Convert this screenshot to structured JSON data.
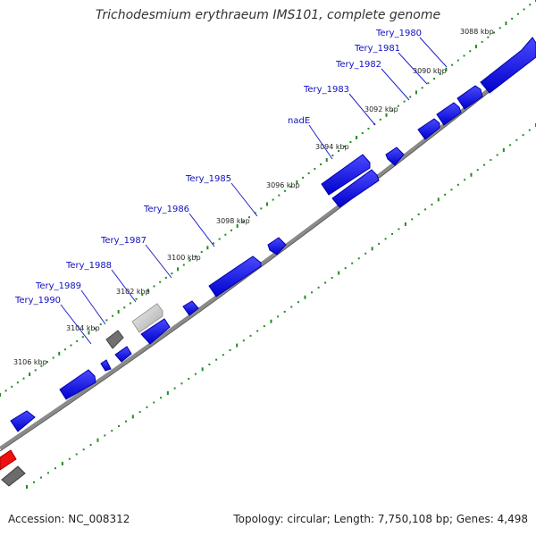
{
  "title": "Trichodesmium erythraeum IMS101, complete genome",
  "footer": {
    "accession": "Accession: NC_008312",
    "topology": "Topology: circular; Length: 7,750,108 bp; Genes: 4,498"
  },
  "colors": {
    "gene": "#1a1aee",
    "gene_label": "#1010c0",
    "pseudo_light": "#c8c8c8",
    "pseudo_dark": "#707070",
    "rna": "#ee1111",
    "backbone": "#808080",
    "tick": "#228b22"
  },
  "scale_labels": [
    {
      "kbp": 3088,
      "label": "3088 kbp"
    },
    {
      "kbp": 3090,
      "label": "3090 kbp"
    },
    {
      "kbp": 3092,
      "label": "3092 kbp"
    },
    {
      "kbp": 3094,
      "label": "3094 kbp"
    },
    {
      "kbp": 3096,
      "label": "3096 kbp"
    },
    {
      "kbp": 3098,
      "label": "3098 kbp"
    },
    {
      "kbp": 3100,
      "label": "3100 kbp"
    },
    {
      "kbp": 3102,
      "label": "3102 kbp"
    },
    {
      "kbp": 3104,
      "label": "3104 kbp"
    },
    {
      "kbp": 3106,
      "label": "3106 kbp"
    }
  ],
  "gene_labels": [
    "Tery_1980",
    "Tery_1981",
    "Tery_1982",
    "Tery_1983",
    "nadE",
    "Tery_1985",
    "Tery_1986",
    "Tery_1987",
    "Tery_1988",
    "Tery_1989",
    "Tery_1990"
  ],
  "features": [
    {
      "name": "Tery_1980",
      "track": "outer",
      "type": "gene"
    },
    {
      "name": "Tery_1981",
      "track": "outer",
      "type": "gene"
    },
    {
      "name": "Tery_1982",
      "track": "outer",
      "type": "gene"
    },
    {
      "name": "Tery_1983",
      "track": "outer",
      "type": "gene"
    },
    {
      "name": "nadE",
      "track": "outer",
      "type": "gene"
    },
    {
      "name": "Tery_1985",
      "track": "outer",
      "type": "gene"
    },
    {
      "name": "Tery_1986",
      "track": "outer",
      "type": "gene"
    },
    {
      "name": "Tery_1987",
      "track": "outer",
      "type": "gene"
    },
    {
      "name": "Tery_1988",
      "track": "outer",
      "type": "gene"
    },
    {
      "name": "Tery_1989",
      "track": "outer",
      "type": "gene"
    },
    {
      "name": "Tery_1990",
      "track": "outer",
      "type": "gene"
    },
    {
      "name": "",
      "track": "inner",
      "type": "gene"
    },
    {
      "name": "",
      "track": "inner",
      "type": "pseudogene"
    },
    {
      "name": "",
      "track": "inner",
      "type": "rna"
    }
  ]
}
